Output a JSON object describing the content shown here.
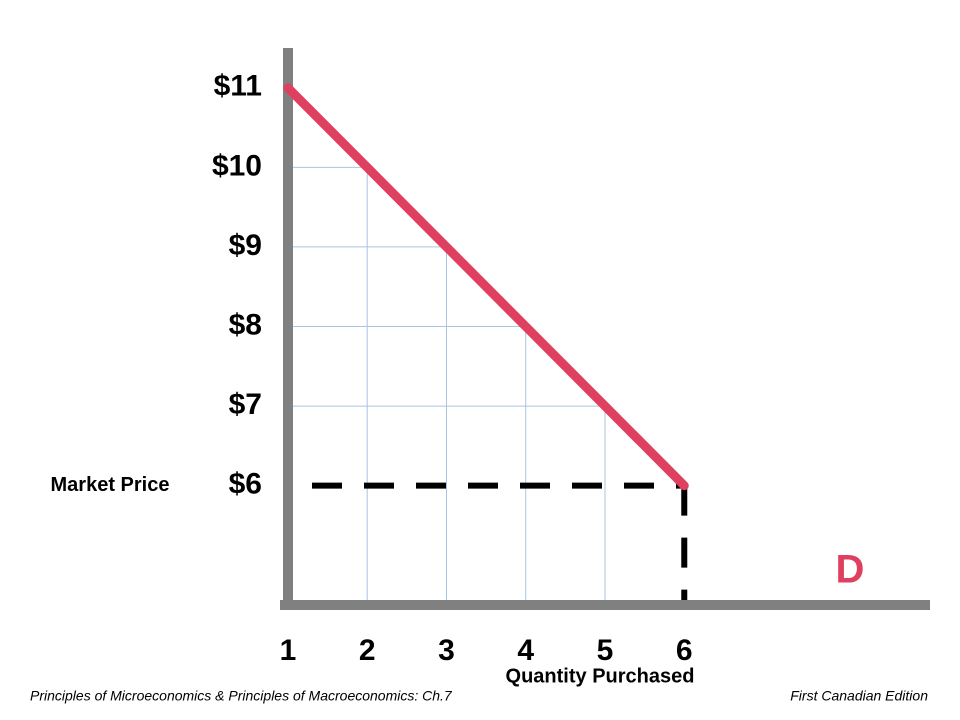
{
  "chart_data": {
    "type": "line",
    "x_label": "Quantity Purchased",
    "y_label": "Market Price",
    "x": [
      1,
      2,
      3,
      4,
      5,
      6
    ],
    "series": [
      {
        "name": "D",
        "color": "#e0405f",
        "values": [
          11,
          10,
          9,
          8,
          7,
          6
        ]
      }
    ],
    "xlim": [
      0.9,
      9.1
    ],
    "ylim": [
      4.5,
      11.5
    ],
    "xticks": [
      1,
      2,
      3,
      4,
      5,
      6
    ],
    "yticks": [
      {
        "value": 6,
        "label": "$6"
      },
      {
        "value": 7,
        "label": "$7"
      },
      {
        "value": 8,
        "label": "$8"
      },
      {
        "value": 9,
        "label": "$9"
      },
      {
        "value": 10,
        "label": "$10"
      },
      {
        "value": 11,
        "label": "$11"
      }
    ],
    "grid": true,
    "footer_left": "Principles of Microeconomics & Principles of Macroeconomics:   Ch.7",
    "footer_right": "First Canadian Edition"
  }
}
